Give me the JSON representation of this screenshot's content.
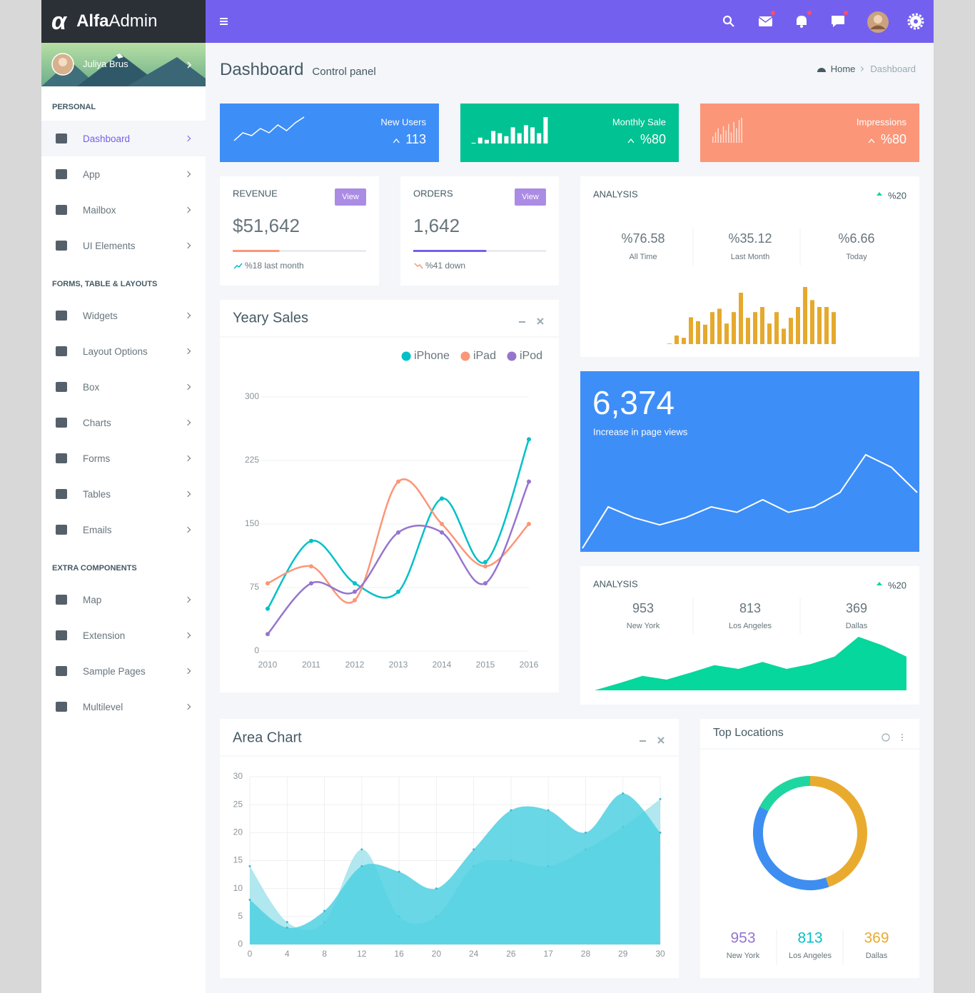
{
  "brand": {
    "mark": "α",
    "name_bold": "Alfa",
    "name_light": "Admin"
  },
  "user": {
    "name": "Juliya Brus"
  },
  "sidebar": [
    {
      "title": "PERSONAL",
      "items": [
        "Dashboard",
        "App",
        "Mailbox",
        "UI Elements"
      ]
    },
    {
      "title": "FORMS, TABLE & LAYOUTS",
      "items": [
        "Widgets",
        "Layout Options",
        "Box",
        "Charts",
        "Forms",
        "Tables",
        "Emails"
      ]
    },
    {
      "title": "EXTRA COMPONENTS",
      "items": [
        "Map",
        "Extension",
        "Sample Pages",
        "Multilevel"
      ]
    }
  ],
  "header": {
    "title": "Dashboard",
    "subtitle": "Control panel",
    "breadcrumb": [
      "Home",
      "Dashboard"
    ]
  },
  "stat_cards": [
    {
      "label": "New Users",
      "value": "113"
    },
    {
      "label": "Monthly Sale",
      "value": "%80"
    },
    {
      "label": "Impressions",
      "value": "%80"
    }
  ],
  "kpis": [
    {
      "title": "REVENUE",
      "button": "View",
      "value": "$51,642",
      "progress": 35,
      "color": "#fb9678",
      "note": "%18 last month"
    },
    {
      "title": "ORDERS",
      "button": "View",
      "value": "1,642",
      "progress": 55,
      "color": "#7460ee",
      "note": "%41 down"
    }
  ],
  "chart_data": [
    {
      "type": "line",
      "title": "Yeary Sales",
      "categories": [
        "2010",
        "2011",
        "2012",
        "2013",
        "2014",
        "2015",
        "2016"
      ],
      "series": [
        {
          "name": "iPhone",
          "color": "#01c0c8",
          "values": [
            50,
            130,
            80,
            70,
            180,
            105,
            250
          ]
        },
        {
          "name": "iPad",
          "color": "#fb9678",
          "values": [
            80,
            100,
            60,
            200,
            150,
            100,
            150
          ]
        },
        {
          "name": "iPod",
          "color": "#9675ce",
          "values": [
            20,
            80,
            70,
            140,
            140,
            80,
            200
          ]
        }
      ],
      "ylim": [
        0,
        300
      ],
      "yticks": [
        0,
        75,
        150,
        225,
        300
      ],
      "grid": true,
      "legend": "top-right",
      "smooth": true
    },
    {
      "type": "bar",
      "title": "ANALYSIS",
      "change": "%20",
      "stats": [
        {
          "value": "%76.58",
          "label": "All Time"
        },
        {
          "value": "%35.12",
          "label": "Last Month"
        },
        {
          "value": "%6.66",
          "label": "Today"
        }
      ],
      "values": [
        1,
        15,
        11,
        47,
        40,
        34,
        56,
        62,
        36,
        56,
        90,
        46,
        56,
        65,
        36,
        56,
        27,
        46,
        65,
        100,
        77,
        65,
        65,
        56
      ],
      "color": "#e5a92e"
    },
    {
      "type": "line",
      "headline": "6,374",
      "subtitle": "Increase in page views",
      "values": [
        2,
        25,
        19,
        15,
        19,
        25,
        22,
        29,
        22,
        25,
        33,
        54,
        47,
        33
      ],
      "color": "#ffffff"
    },
    {
      "type": "area",
      "title": "ANALYSIS",
      "change": "%20",
      "stats": [
        {
          "value": "953",
          "label": "New York"
        },
        {
          "value": "813",
          "label": "Los Angeles"
        },
        {
          "value": "369",
          "label": "Dallas"
        }
      ],
      "values": [
        0,
        13,
        27,
        20,
        33,
        47,
        40,
        53,
        40,
        49,
        63,
        100,
        84,
        63
      ],
      "color": "#06d79c"
    },
    {
      "type": "area",
      "title": "Area Chart",
      "categories": [
        "0",
        "4",
        "8",
        "12",
        "16",
        "20",
        "24",
        "26",
        "17",
        "28",
        "29",
        "30"
      ],
      "series": [
        {
          "color": "#a3e3eb",
          "values": [
            14,
            4,
            4,
            17,
            5,
            5,
            14,
            15,
            14,
            17,
            21,
            26
          ]
        },
        {
          "color": "#4fd0e1",
          "values": [
            8,
            3,
            6,
            14,
            13,
            10,
            17,
            24,
            24,
            20,
            27,
            20
          ]
        }
      ],
      "ylim": [
        0,
        30
      ],
      "yticks": [
        0,
        5,
        10,
        15,
        20,
        25,
        30
      ],
      "grid": true,
      "smooth": true
    },
    {
      "type": "donut",
      "title": "Top Locations",
      "categories": [
        "New York",
        "Los Angeles",
        "Dallas"
      ],
      "values": [
        953,
        813,
        369
      ],
      "colors": [
        "#e9ab2e",
        "#3d8ef0",
        "#1fd6a0"
      ],
      "label_colors": [
        "#9675ce",
        "#01c0c8",
        "#e9ab2e"
      ]
    },
    {
      "type": "line",
      "values": [
        3,
        14,
        10,
        20,
        14,
        25,
        17,
        28,
        36
      ],
      "color": "#ffffff"
    },
    {
      "type": "bar",
      "values": [
        1,
        8,
        5,
        17,
        14,
        10,
        22,
        14,
        25,
        22,
        14,
        36
      ],
      "color": "#ffffff"
    },
    {
      "type": "bar",
      "values": [
        6,
        10,
        14,
        8,
        16,
        12,
        18,
        10,
        20,
        14,
        22,
        24
      ],
      "color": "#fde0d6"
    }
  ]
}
